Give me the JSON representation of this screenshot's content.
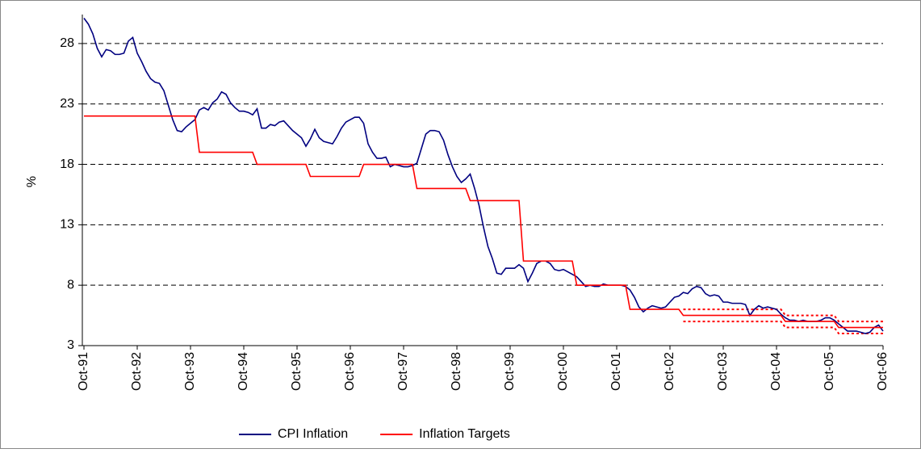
{
  "chart_data": {
    "type": "line",
    "y_label": "%",
    "categories": [
      "Oct-91",
      null,
      null,
      null,
      null,
      null,
      null,
      null,
      null,
      null,
      null,
      null,
      "Oct-92",
      null,
      null,
      null,
      null,
      null,
      null,
      null,
      null,
      null,
      null,
      null,
      "Oct-93",
      null,
      null,
      null,
      null,
      null,
      null,
      null,
      null,
      null,
      null,
      null,
      "Oct-94",
      null,
      null,
      null,
      null,
      null,
      null,
      null,
      null,
      null,
      null,
      null,
      "Oct-95",
      null,
      null,
      null,
      null,
      null,
      null,
      null,
      null,
      null,
      null,
      null,
      "Oct-96",
      null,
      null,
      null,
      null,
      null,
      null,
      null,
      null,
      null,
      null,
      null,
      "Oct-97",
      null,
      null,
      null,
      null,
      null,
      null,
      null,
      null,
      null,
      null,
      null,
      "Oct-98",
      null,
      null,
      null,
      null,
      null,
      null,
      null,
      null,
      null,
      null,
      null,
      "Oct-99",
      null,
      null,
      null,
      null,
      null,
      null,
      null,
      null,
      null,
      null,
      null,
      "Oct-00",
      null,
      null,
      null,
      null,
      null,
      null,
      null,
      null,
      null,
      null,
      null,
      "Oct-01",
      null,
      null,
      null,
      null,
      null,
      null,
      null,
      null,
      null,
      null,
      null,
      "Oct-02",
      null,
      null,
      null,
      null,
      null,
      null,
      null,
      null,
      null,
      null,
      null,
      "Oct-03",
      null,
      null,
      null,
      null,
      null,
      null,
      null,
      null,
      null,
      null,
      null,
      "Oct-04",
      null,
      null,
      null,
      null,
      null,
      null,
      null,
      null,
      null,
      null,
      null,
      "Oct-05",
      null,
      null,
      null,
      null,
      null,
      null,
      null,
      null,
      null,
      null,
      null,
      "Oct-06"
    ],
    "series": [
      {
        "name": "CPI Inflation",
        "color": "#000080",
        "values": [
          30.1,
          29.6,
          28.8,
          27.6,
          26.9,
          27.5,
          27.4,
          27.1,
          27.1,
          27.2,
          28.2,
          28.5,
          27.2,
          26.5,
          25.7,
          25.1,
          24.8,
          24.7,
          24.1,
          22.9,
          21.7,
          20.8,
          20.7,
          21.1,
          21.4,
          21.7,
          22.5,
          22.7,
          22.5,
          23.1,
          23.4,
          24.0,
          23.8,
          23.1,
          22.7,
          22.4,
          22.4,
          22.3,
          22.1,
          22.6,
          21.0,
          21.0,
          21.3,
          21.2,
          21.5,
          21.6,
          21.2,
          20.8,
          20.5,
          20.2,
          19.5,
          20.1,
          20.9,
          20.2,
          19.9,
          19.8,
          19.7,
          20.3,
          21.0,
          21.5,
          21.7,
          21.9,
          21.9,
          21.4,
          19.7,
          19.0,
          18.5,
          18.5,
          18.6,
          17.8,
          18.0,
          17.9,
          17.8,
          17.8,
          17.9,
          18.1,
          19.3,
          20.5,
          20.8,
          20.8,
          20.7,
          20.0,
          18.8,
          17.8,
          17.0,
          16.5,
          16.8,
          17.2,
          16.0,
          14.6,
          12.8,
          11.2,
          10.2,
          9.0,
          8.9,
          9.4,
          9.4,
          9.4,
          9.7,
          9.4,
          8.3,
          9.0,
          9.8,
          10.0,
          10.0,
          9.8,
          9.3,
          9.2,
          9.3,
          9.1,
          8.9,
          8.7,
          8.3,
          7.9,
          8.0,
          7.9,
          7.9,
          8.1,
          8.0,
          8.0,
          8.0,
          8.0,
          7.9,
          7.6,
          7.0,
          6.2,
          5.8,
          6.1,
          6.3,
          6.2,
          6.1,
          6.2,
          6.6,
          7.0,
          7.1,
          7.4,
          7.3,
          7.7,
          7.9,
          7.8,
          7.3,
          7.1,
          7.2,
          7.1,
          6.6,
          6.6,
          6.5,
          6.5,
          6.5,
          6.4,
          5.5,
          6.0,
          6.3,
          6.1,
          6.2,
          6.1,
          6.0,
          5.6,
          5.3,
          5.1,
          5.1,
          5.0,
          5.1,
          5.0,
          5.0,
          5.0,
          5.1,
          5.3,
          5.3,
          5.1,
          4.8,
          4.5,
          4.2,
          4.2,
          4.2,
          4.1,
          4.0,
          4.1,
          4.5,
          4.7,
          4.2
        ]
      },
      {
        "name": "Inflation Targets",
        "color": "#ff0000",
        "values": [
          22,
          22,
          22,
          22,
          22,
          22,
          22,
          22,
          22,
          22,
          22,
          22,
          22,
          22,
          22,
          22,
          22,
          22,
          22,
          22,
          22,
          22,
          22,
          22,
          22,
          22,
          19,
          19,
          19,
          19,
          19,
          19,
          19,
          19,
          19,
          19,
          19,
          19,
          19,
          18,
          18,
          18,
          18,
          18,
          18,
          18,
          18,
          18,
          18,
          18,
          18,
          17,
          17,
          17,
          17,
          17,
          17,
          17,
          17,
          17,
          17,
          17,
          17,
          18,
          18,
          18,
          18,
          18,
          18,
          18,
          18,
          18,
          18,
          18,
          18,
          16,
          16,
          16,
          16,
          16,
          16,
          16,
          16,
          16,
          16,
          16,
          16,
          15,
          15,
          15,
          15,
          15,
          15,
          15,
          15,
          15,
          15,
          15,
          15,
          10,
          10,
          10,
          10,
          10,
          10,
          10,
          10,
          10,
          10,
          10,
          10,
          8,
          8,
          8,
          8,
          8,
          8,
          8,
          8,
          8,
          8,
          8,
          8,
          6,
          6,
          6,
          6,
          6,
          6,
          6,
          6,
          6,
          6,
          6,
          6,
          5.5,
          5.5,
          5.5,
          5.5,
          5.5,
          5.5,
          5.5,
          5.5,
          5.5,
          5.5,
          5.5,
          5.5,
          5.5,
          5.5,
          5.5,
          5.5,
          5.5,
          5.5,
          5.5,
          5.5,
          5.5,
          5.5,
          5.5,
          5,
          5,
          5,
          5,
          5,
          5,
          5,
          5,
          5,
          5,
          5,
          5,
          4.5,
          4.5,
          4.5,
          4.5,
          4.5,
          4.5,
          4.5,
          4.5,
          4.5,
          4.5,
          4.5
        ]
      }
    ],
    "band": {
      "color": "#ff0000",
      "upper": [
        null,
        null,
        null,
        null,
        null,
        null,
        null,
        null,
        null,
        null,
        null,
        null,
        null,
        null,
        null,
        null,
        null,
        null,
        null,
        null,
        null,
        null,
        null,
        null,
        null,
        null,
        null,
        null,
        null,
        null,
        null,
        null,
        null,
        null,
        null,
        null,
        null,
        null,
        null,
        null,
        null,
        null,
        null,
        null,
        null,
        null,
        null,
        null,
        null,
        null,
        null,
        null,
        null,
        null,
        null,
        null,
        null,
        null,
        null,
        null,
        null,
        null,
        null,
        null,
        null,
        null,
        null,
        null,
        null,
        null,
        null,
        null,
        null,
        null,
        null,
        null,
        null,
        null,
        null,
        null,
        null,
        null,
        null,
        null,
        null,
        null,
        null,
        null,
        null,
        null,
        null,
        null,
        null,
        null,
        null,
        null,
        null,
        null,
        null,
        null,
        null,
        null,
        null,
        null,
        null,
        null,
        null,
        null,
        null,
        null,
        null,
        null,
        null,
        null,
        null,
        null,
        null,
        null,
        null,
        null,
        null,
        null,
        null,
        null,
        null,
        null,
        null,
        null,
        null,
        null,
        null,
        null,
        null,
        null,
        null,
        6,
        6,
        6,
        6,
        6,
        6,
        6,
        6,
        6,
        6,
        6,
        6,
        6,
        6,
        6,
        6,
        6,
        6,
        6,
        6,
        6,
        6,
        6,
        5.5,
        5.5,
        5.5,
        5.5,
        5.5,
        5.5,
        5.5,
        5.5,
        5.5,
        5.5,
        5.5,
        5.5,
        5,
        5,
        5,
        5,
        5,
        5,
        5,
        5,
        5,
        5,
        5
      ],
      "lower": [
        null,
        null,
        null,
        null,
        null,
        null,
        null,
        null,
        null,
        null,
        null,
        null,
        null,
        null,
        null,
        null,
        null,
        null,
        null,
        null,
        null,
        null,
        null,
        null,
        null,
        null,
        null,
        null,
        null,
        null,
        null,
        null,
        null,
        null,
        null,
        null,
        null,
        null,
        null,
        null,
        null,
        null,
        null,
        null,
        null,
        null,
        null,
        null,
        null,
        null,
        null,
        null,
        null,
        null,
        null,
        null,
        null,
        null,
        null,
        null,
        null,
        null,
        null,
        null,
        null,
        null,
        null,
        null,
        null,
        null,
        null,
        null,
        null,
        null,
        null,
        null,
        null,
        null,
        null,
        null,
        null,
        null,
        null,
        null,
        null,
        null,
        null,
        null,
        null,
        null,
        null,
        null,
        null,
        null,
        null,
        null,
        null,
        null,
        null,
        null,
        null,
        null,
        null,
        null,
        null,
        null,
        null,
        null,
        null,
        null,
        null,
        null,
        null,
        null,
        null,
        null,
        null,
        null,
        null,
        null,
        null,
        null,
        null,
        null,
        null,
        null,
        null,
        null,
        null,
        null,
        null,
        null,
        null,
        null,
        null,
        5,
        5,
        5,
        5,
        5,
        5,
        5,
        5,
        5,
        5,
        5,
        5,
        5,
        5,
        5,
        5,
        5,
        5,
        5,
        5,
        5,
        5,
        5,
        4.5,
        4.5,
        4.5,
        4.5,
        4.5,
        4.5,
        4.5,
        4.5,
        4.5,
        4.5,
        4.5,
        4.5,
        4,
        4,
        4,
        4,
        4,
        4,
        4,
        4,
        4,
        4,
        4
      ]
    },
    "ylim": [
      3,
      30.4
    ],
    "yticks": [
      3,
      8,
      13,
      18,
      23,
      28
    ],
    "grid": true,
    "legend": "bottom"
  }
}
